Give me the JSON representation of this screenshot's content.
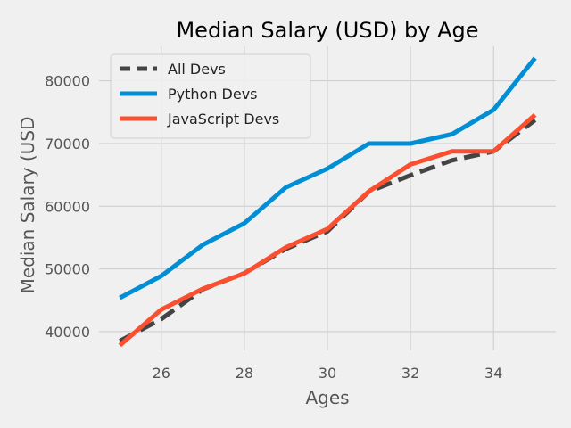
{
  "chart_data": {
    "type": "line",
    "title": "Median Salary (USD) by Age",
    "xlabel": "Ages",
    "ylabel": "Median Salary (USD",
    "x": [
      25,
      26,
      27,
      28,
      29,
      30,
      31,
      32,
      33,
      34,
      35
    ],
    "xlim": [
      24.5,
      35.5
    ],
    "ylim": [
      37000,
      85500
    ],
    "xticks": [
      26,
      28,
      30,
      32,
      34
    ],
    "yticks": [
      40000,
      50000,
      60000,
      70000,
      80000
    ],
    "grid": true,
    "legend_position": "top-left",
    "series": [
      {
        "name": "All Devs",
        "style": "dashed",
        "color": "#444444",
        "values": [
          38496,
          42000,
          46752,
          49320,
          53200,
          56000,
          62316,
          64928,
          67317,
          68748,
          73752
        ]
      },
      {
        "name": "Python Devs",
        "style": "solid",
        "color": "#008fd5",
        "values": [
          45372,
          48876,
          53850,
          57287,
          63016,
          65998,
          70003,
          70000,
          71496,
          75370,
          83640
        ]
      },
      {
        "name": "JavaScript Devs",
        "style": "solid",
        "color": "#fc4f30",
        "values": [
          37810,
          43515,
          46823,
          49293,
          53437,
          56373,
          62375,
          66674,
          68745,
          68746,
          74583
        ]
      }
    ]
  }
}
